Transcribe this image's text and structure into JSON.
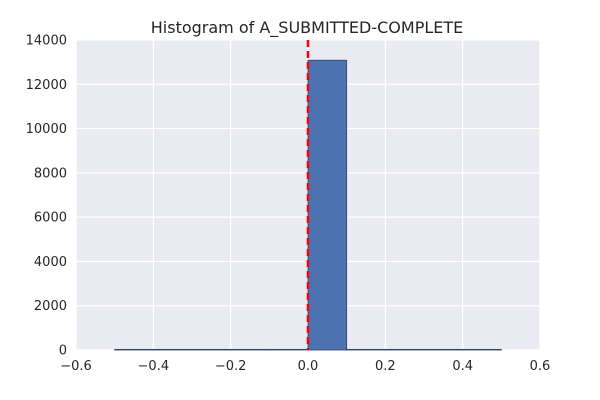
{
  "chart_data": {
    "type": "bar",
    "title": "Histogram of A_SUBMITTED-COMPLETE",
    "xlabel": "",
    "ylabel": "",
    "xlim": [
      -0.6,
      0.6
    ],
    "ylim": [
      0,
      14000
    ],
    "x_ticks": [
      "-0.6",
      "-0.4",
      "-0.2",
      "0.0",
      "0.2",
      "0.4",
      "0.6"
    ],
    "y_ticks": [
      "0",
      "2000",
      "4000",
      "6000",
      "8000",
      "10000",
      "12000",
      "14000"
    ],
    "bins": [
      {
        "x0": -0.5,
        "x1": -0.4,
        "count": 0
      },
      {
        "x0": -0.4,
        "x1": -0.3,
        "count": 0
      },
      {
        "x0": -0.3,
        "x1": -0.2,
        "count": 0
      },
      {
        "x0": -0.2,
        "x1": -0.1,
        "count": 0
      },
      {
        "x0": -0.1,
        "x1": 0.0,
        "count": 0
      },
      {
        "x0": 0.0,
        "x1": 0.1,
        "count": 13087
      },
      {
        "x0": 0.1,
        "x1": 0.2,
        "count": 0
      },
      {
        "x0": 0.2,
        "x1": 0.3,
        "count": 0
      },
      {
        "x0": 0.3,
        "x1": 0.4,
        "count": 0
      },
      {
        "x0": 0.4,
        "x1": 0.5,
        "count": 0
      }
    ],
    "reference_line": {
      "x": 0.0,
      "style": "dashed",
      "color": "#ff0000"
    },
    "grid": true,
    "colors": {
      "bar": "#4c72b0",
      "plot_bg": "#eaeaf2",
      "grid": "#ffffff"
    }
  }
}
